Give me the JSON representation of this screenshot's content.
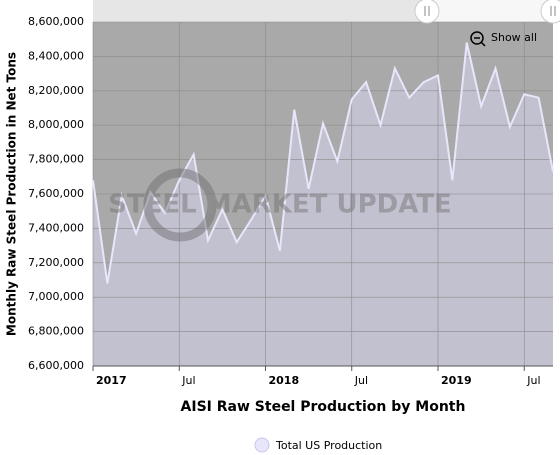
{
  "chart_data": {
    "type": "area",
    "x_axis_label": "AISI Raw Steel Production by Month",
    "y_axis_label": "Monthly Raw Steel Production in Net Tons",
    "watermark": "STEEL MARKET UPDATE",
    "button": "Show all",
    "categories": [
      "2017",
      null,
      null,
      null,
      null,
      null,
      "Jul",
      null,
      null,
      null,
      null,
      null,
      "2018",
      null,
      null,
      null,
      null,
      null,
      "Jul",
      null,
      null,
      null,
      null,
      null,
      "2019",
      null,
      null,
      null,
      null,
      null,
      "Jul",
      null,
      null
    ],
    "series": [
      {
        "name": "Total US Production",
        "color": "#e8e6fb",
        "fill": "#c2c1cf",
        "values": [
          7680000,
          7080000,
          7590000,
          7370000,
          7610000,
          7490000,
          7680000,
          7830000,
          7330000,
          7510000,
          7320000,
          7450000,
          7590000,
          7270000,
          8090000,
          7630000,
          8010000,
          7790000,
          8150000,
          8250000,
          8000000,
          8330000,
          8160000,
          8250000,
          8290000,
          7680000,
          8480000,
          8110000,
          8330000,
          7990000,
          8180000,
          8160000,
          7730000
        ]
      }
    ],
    "ylim": [
      6600000,
      8600000
    ],
    "yticks": [
      {
        "value": 6600000,
        "label": "6,600,000"
      },
      {
        "value": 6800000,
        "label": "6,800,000"
      },
      {
        "value": 7000000,
        "label": "7,000,000"
      },
      {
        "value": 7200000,
        "label": "7,200,000"
      },
      {
        "value": 7400000,
        "label": "7,400,000"
      },
      {
        "value": 7600000,
        "label": "7,600,000"
      },
      {
        "value": 7800000,
        "label": "7,800,000"
      },
      {
        "value": 8000000,
        "label": "8,000,000"
      },
      {
        "value": 8200000,
        "label": "8,200,000"
      },
      {
        "value": 8400000,
        "label": "8,400,000"
      },
      {
        "value": 8600000,
        "label": "8,600,000"
      }
    ],
    "grid": true
  }
}
